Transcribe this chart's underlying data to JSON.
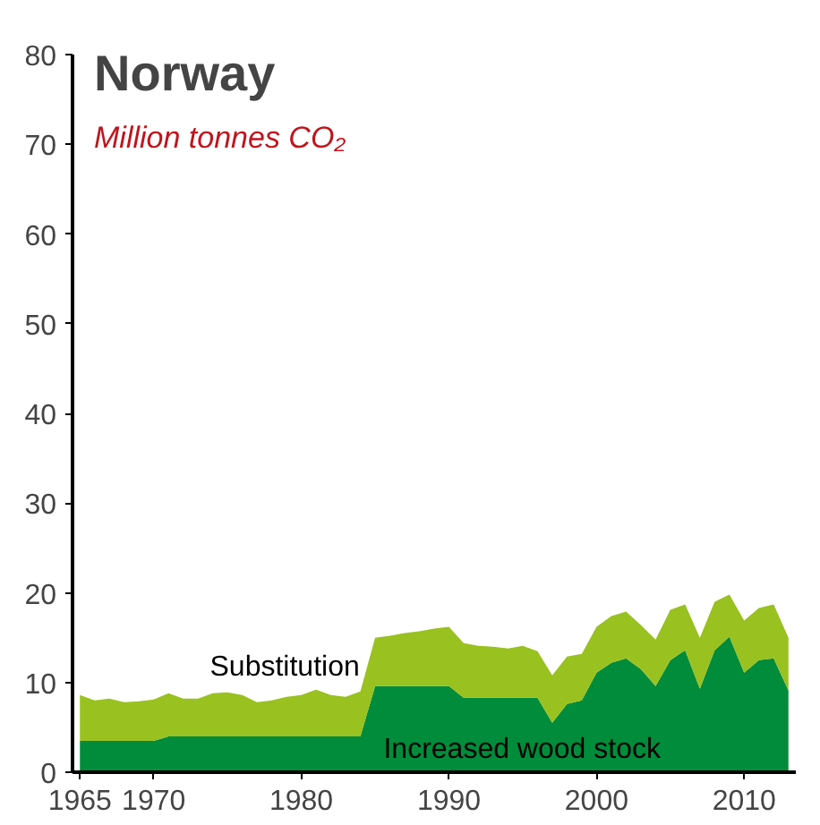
{
  "chart_data": {
    "type": "area",
    "title": "Norway",
    "subtitle": "Million tonnes CO₂",
    "stacked": true,
    "grid": false,
    "x": [
      1965,
      1966,
      1967,
      1968,
      1969,
      1970,
      1971,
      1972,
      1973,
      1974,
      1975,
      1976,
      1977,
      1978,
      1979,
      1980,
      1981,
      1982,
      1983,
      1984,
      1985,
      1986,
      1987,
      1988,
      1989,
      1990,
      1991,
      1992,
      1993,
      1994,
      1995,
      1996,
      1997,
      1998,
      1999,
      2000,
      2001,
      2002,
      2003,
      2004,
      2005,
      2006,
      2007,
      2008,
      2009,
      2010,
      2011,
      2012,
      2013
    ],
    "series": [
      {
        "name": "Increased wood stock",
        "color": "#008c3a",
        "values": [
          3.5,
          3.5,
          3.5,
          3.5,
          3.5,
          3.5,
          4.0,
          4.0,
          4.0,
          4.0,
          4.0,
          4.0,
          4.0,
          4.0,
          4.0,
          4.0,
          4.0,
          4.0,
          4.0,
          4.0,
          9.6,
          9.6,
          9.6,
          9.6,
          9.6,
          9.6,
          8.3,
          8.3,
          8.3,
          8.3,
          8.3,
          8.3,
          5.5,
          7.6,
          8.0,
          11.1,
          12.2,
          12.7,
          11.5,
          9.6,
          12.5,
          13.6,
          9.3,
          13.6,
          15.1,
          11.1,
          12.5,
          12.7,
          9.1
        ]
      },
      {
        "name": "Substitution",
        "color": "#99c11f",
        "values": [
          5.1,
          4.5,
          4.7,
          4.3,
          4.4,
          4.6,
          4.8,
          4.2,
          4.2,
          4.8,
          4.9,
          4.6,
          3.8,
          4.0,
          4.4,
          4.6,
          5.2,
          4.6,
          4.4,
          5.0,
          5.4,
          5.6,
          5.9,
          6.1,
          6.4,
          6.6,
          6.1,
          5.8,
          5.7,
          5.5,
          5.8,
          5.2,
          5.3,
          5.3,
          5.2,
          5.1,
          5.2,
          5.2,
          4.9,
          5.2,
          5.6,
          5.1,
          5.7,
          5.4,
          4.7,
          5.8,
          5.8,
          6.0,
          5.9
        ]
      }
    ],
    "xlim": [
      1964.5,
      2013.5
    ],
    "ylim": [
      0,
      80
    ],
    "xticks": [
      1965,
      1970,
      1980,
      1990,
      2000,
      2010
    ],
    "yticks": [
      0,
      10,
      20,
      30,
      40,
      50,
      60,
      70,
      80
    ]
  }
}
